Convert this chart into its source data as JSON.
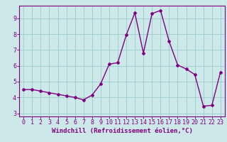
{
  "x": [
    0,
    1,
    2,
    3,
    4,
    5,
    6,
    7,
    8,
    9,
    10,
    11,
    12,
    13,
    14,
    15,
    16,
    17,
    18,
    19,
    20,
    21,
    22,
    23
  ],
  "y": [
    4.5,
    4.5,
    4.4,
    4.3,
    4.2,
    4.1,
    4.0,
    3.85,
    4.15,
    4.85,
    6.1,
    6.2,
    7.95,
    9.35,
    6.8,
    9.3,
    9.5,
    7.55,
    6.05,
    5.8,
    5.45,
    3.45,
    3.5,
    5.6
  ],
  "line_color": "#800080",
  "marker": "D",
  "markersize": 2.0,
  "linewidth": 1.0,
  "bg_color": "#cce8e8",
  "grid_color": "#99cccc",
  "xlabel": "Windchill (Refroidissement éolien,°C)",
  "xlabel_color": "#800080",
  "tick_color": "#800080",
  "spine_color": "#800080",
  "xlim": [
    -0.5,
    23.5
  ],
  "ylim": [
    2.8,
    9.8
  ],
  "yticks": [
    3,
    4,
    5,
    6,
    7,
    8,
    9
  ],
  "xticks": [
    0,
    1,
    2,
    3,
    4,
    5,
    6,
    7,
    8,
    9,
    10,
    11,
    12,
    13,
    14,
    15,
    16,
    17,
    18,
    19,
    20,
    21,
    22,
    23
  ],
  "xlabel_fontsize": 6.5,
  "tick_fontsize": 6.0
}
